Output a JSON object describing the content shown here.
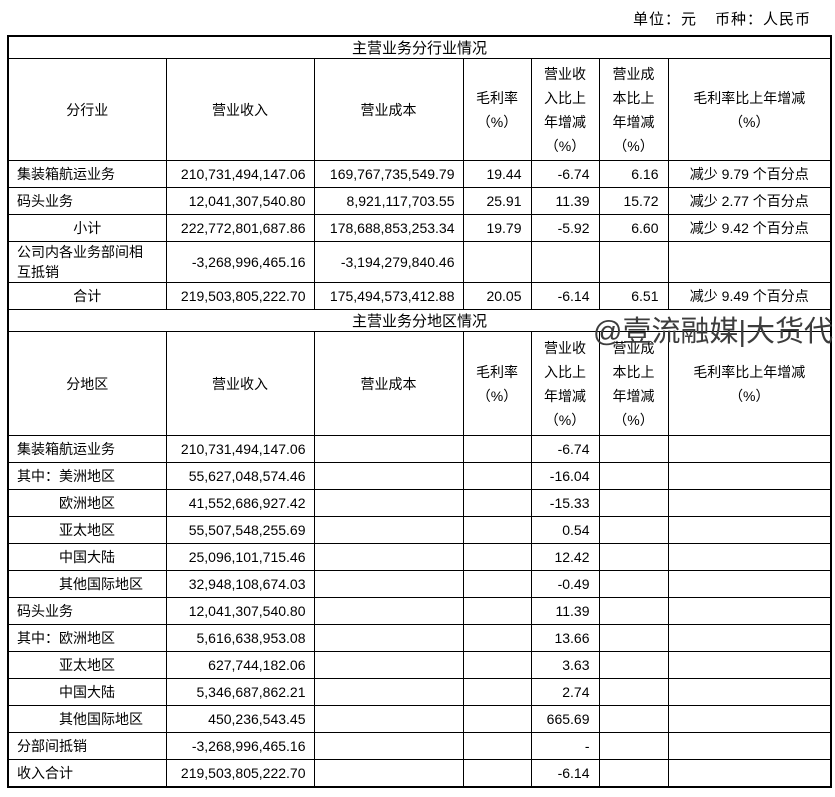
{
  "meta": {
    "unit_label": "单位：元",
    "currency_label": "币种：人民币"
  },
  "watermark": {
    "text": "@壹流融媒|大货代",
    "color": "#3d3d3d"
  },
  "industry_table": {
    "title": "主营业务分行业情况",
    "headers": [
      "分行业",
      "营业收入",
      "营业成本",
      "毛利率\n（%）",
      "营业收\n入比上\n年增减\n（%）",
      "营业成\n本比上\n年增减\n（%）",
      "毛利率比上年增减\n（%）"
    ],
    "rows": [
      {
        "label_style": "left",
        "cells": [
          "集装箱航运业务",
          "210,731,494,147.06",
          "169,767,735,549.79",
          "19.44",
          "-6.74",
          "6.16",
          "减少 9.79 个百分点"
        ]
      },
      {
        "label_style": "left",
        "cells": [
          "码头业务",
          "12,041,307,540.80",
          "8,921,117,703.55",
          "25.91",
          "11.39",
          "15.72",
          "减少 2.77 个百分点"
        ]
      },
      {
        "label_style": "center",
        "cells": [
          "小计",
          "222,772,801,687.86",
          "178,688,853,253.34",
          "19.79",
          "-5.92",
          "6.60",
          "减少 9.42 个百分点"
        ]
      },
      {
        "label_style": "left",
        "cells": [
          "公司内各业务部间相\n互抵销",
          "-3,268,996,465.16",
          "-3,194,279,840.46",
          "",
          "",
          "",
          ""
        ]
      },
      {
        "label_style": "center",
        "cells": [
          "合计",
          "219,503,805,222.70",
          "175,494,573,412.88",
          "20.05",
          "-6.14",
          "6.51",
          "减少 9.49 个百分点"
        ]
      }
    ]
  },
  "region_table": {
    "title": "主营业务分地区情况",
    "headers": [
      "分地区",
      "营业收入",
      "营业成本",
      "毛利率\n（%）",
      "营业收\n入比上\n年增减\n（%）",
      "营业成\n本比上\n年增减\n（%）",
      "毛利率比上年增减\n（%）"
    ],
    "rows": [
      {
        "label_style": "left",
        "cells": [
          "集装箱航运业务",
          "210,731,494,147.06",
          "",
          "",
          "-6.74",
          "",
          ""
        ]
      },
      {
        "label_style": "left",
        "cells": [
          "其中：美洲地区",
          "55,627,048,574.46",
          "",
          "",
          "-16.04",
          "",
          ""
        ]
      },
      {
        "label_style": "indent",
        "cells": [
          "欧洲地区",
          "41,552,686,927.42",
          "",
          "",
          "-15.33",
          "",
          ""
        ]
      },
      {
        "label_style": "indent",
        "cells": [
          "亚太地区",
          "55,507,548,255.69",
          "",
          "",
          "0.54",
          "",
          ""
        ]
      },
      {
        "label_style": "indent",
        "cells": [
          "中国大陆",
          "25,096,101,715.46",
          "",
          "",
          "12.42",
          "",
          ""
        ]
      },
      {
        "label_style": "indent",
        "cells": [
          "其他国际地区",
          "32,948,108,674.03",
          "",
          "",
          "-0.49",
          "",
          ""
        ]
      },
      {
        "label_style": "left",
        "cells": [
          "码头业务",
          "12,041,307,540.80",
          "",
          "",
          "11.39",
          "",
          ""
        ]
      },
      {
        "label_style": "left",
        "cells": [
          "其中：欧洲地区",
          "5,616,638,953.08",
          "",
          "",
          "13.66",
          "",
          ""
        ]
      },
      {
        "label_style": "indent",
        "cells": [
          "亚太地区",
          "627,744,182.06",
          "",
          "",
          "3.63",
          "",
          ""
        ]
      },
      {
        "label_style": "indent",
        "cells": [
          "中国大陆",
          "5,346,687,862.21",
          "",
          "",
          "2.74",
          "",
          ""
        ]
      },
      {
        "label_style": "indent",
        "cells": [
          "其他国际地区",
          "450,236,543.45",
          "",
          "",
          "665.69",
          "",
          ""
        ]
      },
      {
        "label_style": "left",
        "cells": [
          "分部间抵销",
          "-3,268,996,465.16",
          "",
          "",
          "-",
          "",
          ""
        ]
      },
      {
        "label_style": "left",
        "cells": [
          "收入合计",
          "219,503,805,222.70",
          "",
          "",
          "-6.14",
          "",
          ""
        ]
      }
    ]
  }
}
